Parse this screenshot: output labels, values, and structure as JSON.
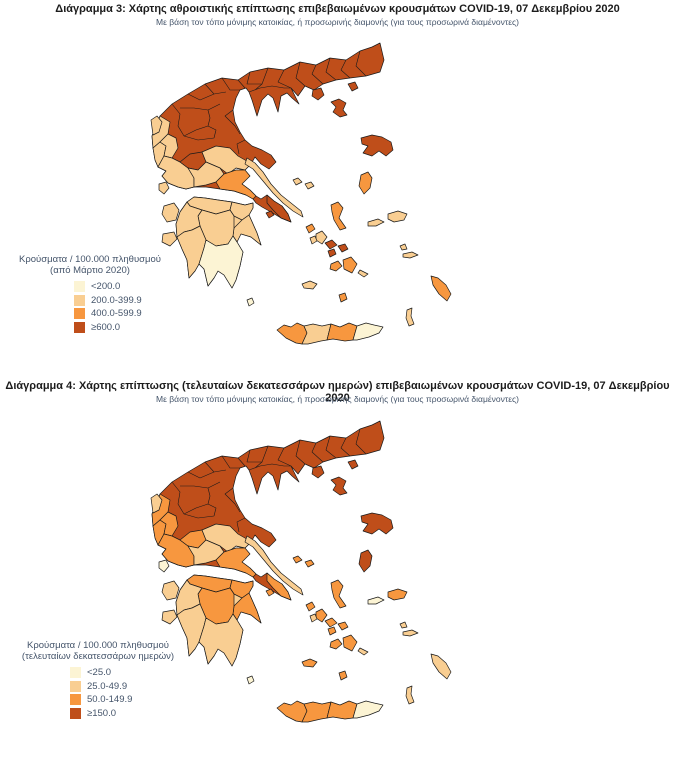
{
  "palette": {
    "c1": "#FCF4D4",
    "c2": "#F9CE92",
    "c3": "#F7973F",
    "c4": "#BF4E1A",
    "border": "#1A1A1A"
  },
  "figures": [
    {
      "title": "Διάγραμμα 3: Χάρτης αθροιστικής επίπτωσης επιβεβαιωμένων κρουσμάτων COVID-19, 07 Δεκεμβρίου 2020",
      "subtitle": "Με βάση τον τόπο μόνιμης κατοικίας, ή προσωρινής διαμονής (για τους προσωρινά διαμένοντες)",
      "legend": {
        "title": "Κρούσματα / 100.000 πληθυσμού",
        "subtitle": "(από Μάρτιο 2020)",
        "items": [
          {
            "label": "<200.0",
            "cat": "c1"
          },
          {
            "label": "200.0-399.9",
            "cat": "c2"
          },
          {
            "label": "400.0-599.9",
            "cat": "c3"
          },
          {
            "label": "≥600.0",
            "cat": "c4"
          }
        ]
      },
      "regions": {
        "north_mainland": "c4",
        "peloponnese": "c2",
        "thesprotia": "c2",
        "preveza": "c2",
        "arta": "c2",
        "aetolia": "c2",
        "evrytania": "c4",
        "phthiotis": "c2",
        "phocis": "c2",
        "boeotia": "c3",
        "attica_e": "c4",
        "achaea": "c2",
        "corinthia": "c2",
        "argolis": "c2",
        "arcadia": "c2",
        "elis": "c2",
        "messenia": "c2",
        "laconia": "c1",
        "euboea": "c2",
        "corfu": "c2",
        "lefkada": "c2",
        "kefalonia": "c2",
        "zakynthos": "c2",
        "kythira": "c1",
        "sporades": "c2",
        "skyros": "c3",
        "lemnos": "c4",
        "thasos": "c4",
        "samothrace": "c4",
        "lesbos": "c4",
        "chios": "c3",
        "samos": "c2",
        "ikaria": "c2",
        "andros": "c2",
        "tinos": "c4",
        "mykonos": "c4",
        "syros": "c4",
        "kea": "c3",
        "kythnos": "c2",
        "paros": "c3",
        "naxos": "c3",
        "amorgos": "c2",
        "milos": "c2",
        "santorini": "c3",
        "aegina": "c4",
        "kos": "c2",
        "kalymnos": "c2",
        "rhodes": "c3",
        "karpathos": "c2",
        "chania": "c3",
        "rethymno": "c2",
        "heraklion": "c3",
        "lasithi": "c1"
      }
    },
    {
      "title": "Διάγραμμα 4: Χάρτης επίπτωσης (τελευταίων δεκατεσσάρων ημερών) επιβεβαιωμένων κρουσμάτων COVID-19, 07 Δεκεμβρίου 2020",
      "subtitle": "Με βάση τον τόπο μόνιμης κατοικίας, ή προσωρινής διαμονής (για τους προσωρινά διαμένοντες)",
      "legend": {
        "title": "Κρούσματα / 100.000 πληθυσμού",
        "subtitle": "(τελευταίων δεκατεσσάρων ημερών)",
        "items": [
          {
            "label": "<25.0",
            "cat": "c1"
          },
          {
            "label": "25.0-49.9",
            "cat": "c2"
          },
          {
            "label": "50.0-149.9",
            "cat": "c3"
          },
          {
            "label": "≥150.0",
            "cat": "c4"
          }
        ]
      },
      "regions": {
        "north_mainland": "c4",
        "peloponnese": "c2",
        "thesprotia": "c3",
        "preveza": "c3",
        "arta": "c3",
        "aetolia": "c3",
        "evrytania": "c3",
        "phthiotis": "c2",
        "phocis": "c2",
        "boeotia": "c3",
        "attica_e": "c3",
        "achaea": "c3",
        "corinthia": "c3",
        "argolis": "c3",
        "arcadia": "c3",
        "elis": "c2",
        "messenia": "c2",
        "laconia": "c2",
        "euboea": "c2",
        "corfu": "c2",
        "lefkada": "c1",
        "kefalonia": "c2",
        "zakynthos": "c2",
        "kythira": "c1",
        "sporades": "c3",
        "skyros": "c3",
        "lemnos": "c4",
        "thasos": "c4",
        "samothrace": "c4",
        "lesbos": "c4",
        "chios": "c4",
        "samos": "c3",
        "ikaria": "c1",
        "andros": "c3",
        "tinos": "c3",
        "mykonos": "c3",
        "syros": "c3",
        "kea": "c3",
        "kythnos": "c2",
        "paros": "c3",
        "naxos": "c3",
        "amorgos": "c2",
        "milos": "c3",
        "santorini": "c3",
        "aegina": "c3",
        "kos": "c2",
        "kalymnos": "c2",
        "rhodes": "c2",
        "karpathos": "c2",
        "chania": "c3",
        "rethymno": "c3",
        "heraklion": "c3",
        "lasithi": "c1"
      }
    }
  ],
  "chart_data": [
    {
      "type": "heatmap",
      "title": "Διάγραμμα 3: Χάρτης αθροιστικής επίπτωσης επιβεβαιωμένων κρουσμάτων COVID-19, 07 Δεκεμβρίου 2020",
      "unit": "Κρούσματα / 100.000 πληθυσμού (από Μάρτιο 2020)",
      "bins": [
        "<200.0",
        "200.0-399.9",
        "400.0-599.9",
        "≥600.0"
      ],
      "bin_colors": [
        "#FCF4D4",
        "#F9CE92",
        "#F7973F",
        "#BF4E1A"
      ],
      "note": "choropleth of Greek regional units; assignments in figures[0].regions"
    },
    {
      "type": "heatmap",
      "title": "Διάγραμμα 4: Χάρτης επίπτωσης (τελευταίων δεκατεσσάρων ημερών) επιβεβαιωμένων κρουσμάτων COVID-19, 07 Δεκεμβρίου 2020",
      "unit": "Κρούσματα / 100.000 πληθυσμού (τελευταίων δεκατεσσάρων ημερών)",
      "bins": [
        "<25.0",
        "25.0-49.9",
        "50.0-149.9",
        "≥150.0"
      ],
      "bin_colors": [
        "#FCF4D4",
        "#F9CE92",
        "#F7973F",
        "#BF4E1A"
      ],
      "note": "choropleth of Greek regional units; assignments in figures[1].regions"
    }
  ]
}
